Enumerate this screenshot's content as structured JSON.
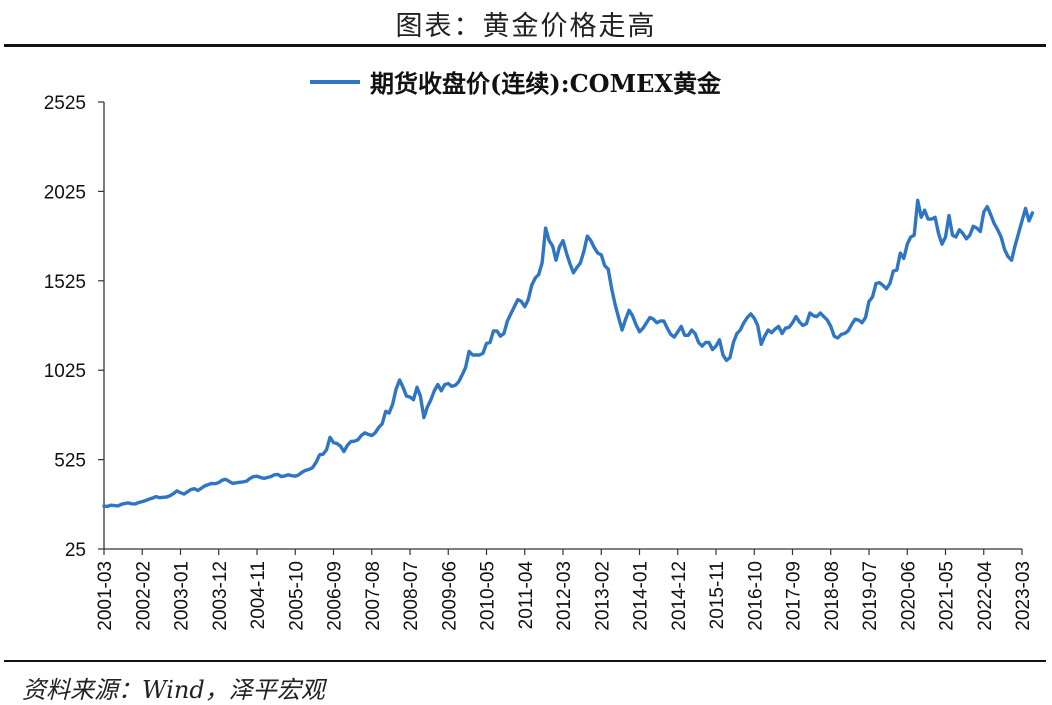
{
  "figure": {
    "title": "图表：黄金价格走高",
    "source": "资料来源：Wind，泽平宏观"
  },
  "chart_data": {
    "type": "line",
    "title": "",
    "xlabel": "",
    "ylabel": "",
    "ylim": [
      25,
      2525
    ],
    "yticks": [
      25,
      525,
      1025,
      1525,
      2025,
      2525
    ],
    "xtick_labels": [
      "2001-03",
      "2002-02",
      "2003-01",
      "2003-12",
      "2004-11",
      "2005-10",
      "2006-09",
      "2007-08",
      "2008-07",
      "2009-06",
      "2010-05",
      "2011-04",
      "2012-03",
      "2013-02",
      "2014-01",
      "2014-12",
      "2015-11",
      "2016-10",
      "2017-09",
      "2018-08",
      "2019-07",
      "2020-06",
      "2021-05",
      "2022-04",
      "2023-03"
    ],
    "grid": false,
    "legend_position": "top-center",
    "line_color": "#2E75C6",
    "series": [
      {
        "name": "期货收盘价(连续):COMEX黄金",
        "x_start": "2001-03",
        "x_step": "month",
        "values": [
          265,
          263,
          270,
          268,
          266,
          275,
          280,
          283,
          278,
          277,
          285,
          290,
          296,
          304,
          310,
          318,
          312,
          314,
          316,
          323,
          335,
          350,
          340,
          332,
          345,
          358,
          362,
          352,
          365,
          378,
          385,
          392,
          390,
          397,
          410,
          415,
          403,
          392,
          395,
          398,
          400,
          405,
          420,
          430,
          432,
          425,
          420,
          425,
          430,
          440,
          442,
          430,
          434,
          440,
          435,
          432,
          440,
          455,
          465,
          470,
          480,
          510,
          552,
          555,
          580,
          650,
          620,
          615,
          600,
          570,
          605,
          626,
          628,
          635,
          660,
          675,
          666,
          660,
          675,
          705,
          725,
          795,
          785,
          835,
          920,
          970,
          930,
          880,
          875,
          860,
          930,
          880,
          760,
          820,
          860,
          910,
          945,
          910,
          945,
          950,
          935,
          940,
          960,
          1000,
          1040,
          1130,
          1110,
          1110,
          1110,
          1120,
          1175,
          1180,
          1245,
          1245,
          1215,
          1230,
          1300,
          1340,
          1380,
          1420,
          1410,
          1380,
          1420,
          1500,
          1540,
          1560,
          1625,
          1820,
          1750,
          1720,
          1640,
          1715,
          1750,
          1680,
          1620,
          1570,
          1600,
          1625,
          1690,
          1775,
          1750,
          1710,
          1680,
          1670,
          1610,
          1590,
          1480,
          1390,
          1320,
          1250,
          1310,
          1360,
          1330,
          1280,
          1240,
          1260,
          1290,
          1320,
          1310,
          1290,
          1300,
          1300,
          1260,
          1225,
          1210,
          1240,
          1270,
          1220,
          1220,
          1250,
          1230,
          1180,
          1160,
          1180,
          1180,
          1140,
          1160,
          1195,
          1110,
          1080,
          1095,
          1180,
          1230,
          1250,
          1290,
          1320,
          1340,
          1315,
          1275,
          1170,
          1215,
          1250,
          1235,
          1255,
          1270,
          1230,
          1260,
          1265,
          1290,
          1325,
          1295,
          1275,
          1285,
          1345,
          1330,
          1325,
          1345,
          1325,
          1305,
          1270,
          1215,
          1205,
          1225,
          1230,
          1245,
          1280,
          1310,
          1305,
          1290,
          1320,
          1410,
          1435,
          1510,
          1515,
          1500,
          1480,
          1510,
          1580,
          1585,
          1680,
          1650,
          1730,
          1770,
          1780,
          1975,
          1880,
          1920,
          1870,
          1870,
          1880,
          1790,
          1730,
          1770,
          1890,
          1780,
          1770,
          1810,
          1790,
          1760,
          1780,
          1830,
          1820,
          1800,
          1910,
          1940,
          1895,
          1845,
          1810,
          1770,
          1700,
          1660,
          1640,
          1720,
          1790,
          1860,
          1930,
          1860,
          1905
        ]
      }
    ]
  }
}
